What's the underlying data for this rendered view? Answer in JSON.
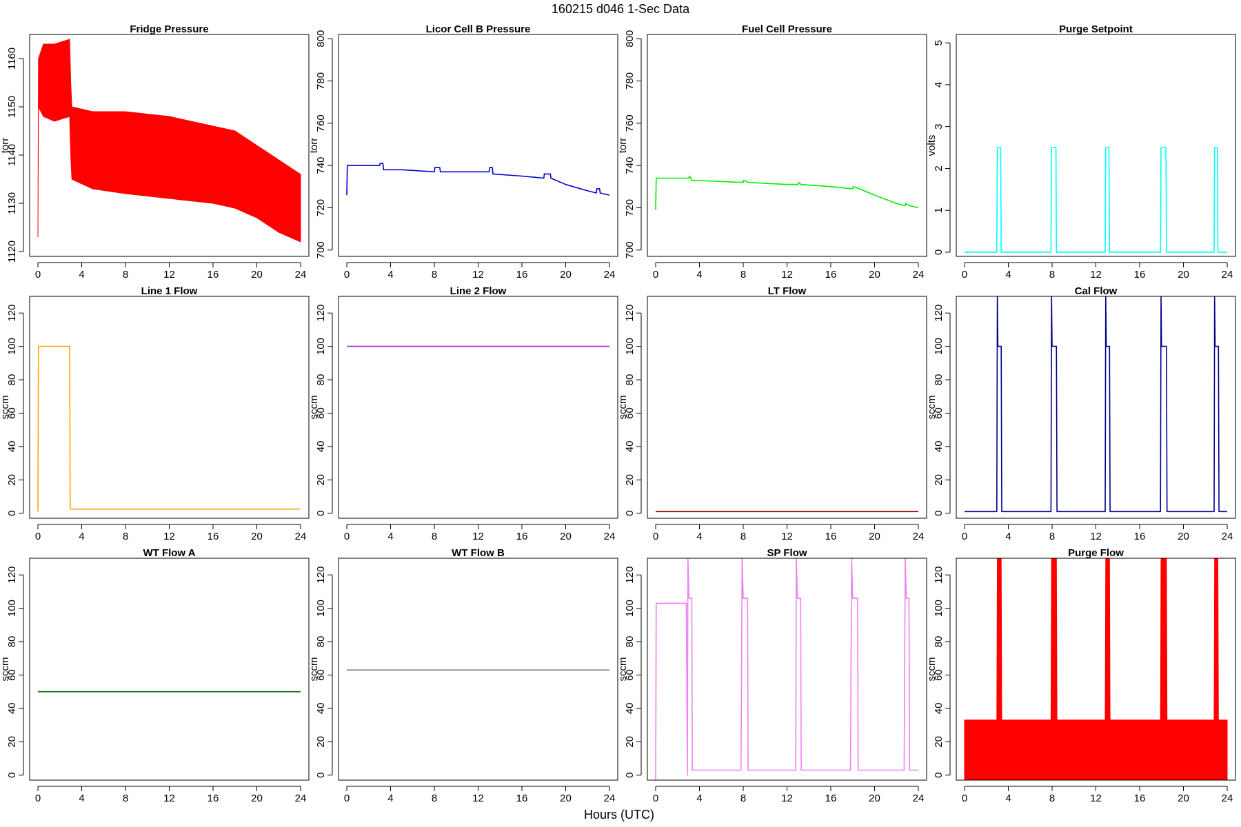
{
  "figure": {
    "title": "160215    d046    1-Sec Data",
    "shared_xlabel": "Hours (UTC)"
  },
  "chart_data": [
    {
      "type": "line",
      "title": "Fridge Pressure",
      "ylabel": "torr",
      "color": "#ff0000",
      "xlim": [
        0,
        24
      ],
      "ylim": [
        1119,
        1165
      ],
      "xticks": [
        0,
        4,
        8,
        12,
        16,
        20,
        24
      ],
      "yticks": [
        1120,
        1130,
        1140,
        1150,
        1160
      ],
      "series": [
        {
          "mode": "band",
          "upper": [
            [
              0,
              1123
            ],
            [
              0.05,
              1160
            ],
            [
              0.5,
              1163
            ],
            [
              1.5,
              1163
            ],
            [
              2.9,
              1164
            ],
            [
              3,
              1155
            ],
            [
              3.1,
              1150
            ],
            [
              5,
              1149
            ],
            [
              8,
              1149
            ],
            [
              12,
              1148
            ],
            [
              16,
              1146
            ],
            [
              18,
              1145
            ],
            [
              20,
              1142
            ],
            [
              22,
              1139
            ],
            [
              24,
              1136
            ]
          ],
          "lower": [
            [
              0,
              1123
            ],
            [
              0.05,
              1150
            ],
            [
              0.5,
              1148
            ],
            [
              1.5,
              1147
            ],
            [
              2.9,
              1148
            ],
            [
              3,
              1140
            ],
            [
              3.1,
              1135
            ],
            [
              5,
              1133
            ],
            [
              8,
              1132
            ],
            [
              12,
              1131
            ],
            [
              16,
              1130
            ],
            [
              18,
              1129
            ],
            [
              20,
              1127
            ],
            [
              22,
              1124
            ],
            [
              24,
              1122
            ]
          ]
        }
      ]
    },
    {
      "type": "line",
      "title": "Licor Cell B Pressure",
      "ylabel": "torr",
      "color": "#0000cc",
      "xlim": [
        0,
        24
      ],
      "ylim": [
        697,
        802
      ],
      "xticks": [
        0,
        4,
        8,
        12,
        16,
        20,
        24
      ],
      "yticks": [
        700,
        720,
        740,
        760,
        780,
        800
      ],
      "series": [
        {
          "mode": "line",
          "points": [
            [
              0,
              726
            ],
            [
              0.05,
              740
            ],
            [
              3,
              740
            ],
            [
              3.05,
              741
            ],
            [
              3.3,
              741
            ],
            [
              3.35,
              738
            ],
            [
              5,
              738
            ],
            [
              8,
              737
            ],
            [
              8.05,
              739
            ],
            [
              8.5,
              739
            ],
            [
              8.55,
              737
            ],
            [
              12,
              737
            ],
            [
              13,
              737
            ],
            [
              13.05,
              739
            ],
            [
              13.3,
              739
            ],
            [
              13.35,
              736
            ],
            [
              16,
              735
            ],
            [
              18,
              734
            ],
            [
              18.05,
              736
            ],
            [
              18.6,
              736
            ],
            [
              18.65,
              734
            ],
            [
              20,
              731
            ],
            [
              22,
              728
            ],
            [
              22.8,
              727
            ],
            [
              22.85,
              729
            ],
            [
              23.1,
              729
            ],
            [
              23.15,
              727
            ],
            [
              24,
              726
            ]
          ]
        }
      ]
    },
    {
      "type": "line",
      "title": "Fuel Cell Pressure",
      "ylabel": "torr",
      "color": "#00ee00",
      "xlim": [
        0,
        24
      ],
      "ylim": [
        697,
        802
      ],
      "xticks": [
        0,
        4,
        8,
        12,
        16,
        20,
        24
      ],
      "yticks": [
        700,
        720,
        740,
        760,
        780,
        800
      ],
      "series": [
        {
          "mode": "line",
          "points": [
            [
              0,
              719
            ],
            [
              0.05,
              734
            ],
            [
              3,
              734
            ],
            [
              3.1,
              735
            ],
            [
              3.3,
              733
            ],
            [
              8,
              732
            ],
            [
              8.05,
              733
            ],
            [
              8.5,
              732
            ],
            [
              12,
              731
            ],
            [
              13,
              731
            ],
            [
              13.05,
              732
            ],
            [
              13.3,
              731
            ],
            [
              16,
              730
            ],
            [
              18,
              729
            ],
            [
              18.05,
              730
            ],
            [
              18.6,
              729
            ],
            [
              20,
              726
            ],
            [
              22,
              722
            ],
            [
              22.8,
              721
            ],
            [
              22.85,
              722
            ],
            [
              23.2,
              721
            ],
            [
              24,
              720
            ]
          ]
        }
      ]
    },
    {
      "type": "line",
      "title": "Purge Setpoint",
      "ylabel": "volts",
      "color": "#00ffff",
      "xlim": [
        0,
        24
      ],
      "ylim": [
        -0.1,
        5.2
      ],
      "xticks": [
        0,
        4,
        8,
        12,
        16,
        20,
        24
      ],
      "yticks": [
        0,
        1,
        2,
        3,
        4,
        5
      ],
      "series": [
        {
          "mode": "line",
          "points": [
            [
              0,
              0
            ],
            [
              2.95,
              0
            ],
            [
              3,
              2.5
            ],
            [
              3.3,
              2.5
            ],
            [
              3.35,
              0
            ],
            [
              7.9,
              0
            ],
            [
              7.95,
              2.5
            ],
            [
              8.35,
              2.5
            ],
            [
              8.4,
              0
            ],
            [
              12.85,
              0
            ],
            [
              12.9,
              2.5
            ],
            [
              13.2,
              2.5
            ],
            [
              13.25,
              0
            ],
            [
              17.9,
              0
            ],
            [
              17.95,
              2.5
            ],
            [
              18.4,
              2.5
            ],
            [
              18.45,
              0
            ],
            [
              22.8,
              0
            ],
            [
              22.85,
              2.5
            ],
            [
              23.1,
              2.5
            ],
            [
              23.15,
              0
            ],
            [
              24,
              0
            ]
          ]
        }
      ]
    },
    {
      "type": "line",
      "title": "Line 1 Flow",
      "ylabel": "sccm",
      "color": "#ffa500",
      "xlim": [
        0,
        24
      ],
      "ylim": [
        -3,
        130
      ],
      "xticks": [
        0,
        4,
        8,
        12,
        16,
        20,
        24
      ],
      "yticks": [
        0,
        20,
        40,
        60,
        80,
        100,
        120
      ],
      "series": [
        {
          "mode": "line",
          "points": [
            [
              0,
              1
            ],
            [
              0.05,
              100
            ],
            [
              2.9,
              100
            ],
            [
              2.95,
              2.5
            ],
            [
              24,
              2.5
            ]
          ]
        }
      ]
    },
    {
      "type": "line",
      "title": "Line 2 Flow",
      "ylabel": "sccm",
      "color": "#a020f0",
      "xlim": [
        0,
        24
      ],
      "ylim": [
        -3,
        130
      ],
      "xticks": [
        0,
        4,
        8,
        12,
        16,
        20,
        24
      ],
      "yticks": [
        0,
        20,
        40,
        60,
        80,
        100,
        120
      ],
      "series": [
        {
          "mode": "line",
          "points": [
            [
              0,
              100
            ],
            [
              24,
              100
            ]
          ]
        }
      ]
    },
    {
      "type": "line",
      "title": "LT Flow",
      "ylabel": "sccm",
      "color": "#8b0000",
      "xlim": [
        0,
        24
      ],
      "ylim": [
        -3,
        130
      ],
      "xticks": [
        0,
        4,
        8,
        12,
        16,
        20,
        24
      ],
      "yticks": [
        0,
        20,
        40,
        60,
        80,
        100,
        120
      ],
      "series": [
        {
          "mode": "line",
          "points": [
            [
              0,
              1
            ],
            [
              24,
              1
            ]
          ]
        }
      ]
    },
    {
      "type": "line",
      "title": "Cal Flow",
      "ylabel": "sccm",
      "color": "#00008b",
      "xlim": [
        0,
        24
      ],
      "ylim": [
        -3,
        130
      ],
      "xticks": [
        0,
        4,
        8,
        12,
        16,
        20,
        24
      ],
      "yticks": [
        0,
        20,
        40,
        60,
        80,
        100,
        120
      ],
      "series": [
        {
          "mode": "line",
          "points": [
            [
              0,
              1
            ],
            [
              2.95,
              1
            ],
            [
              3,
              130
            ],
            [
              3.05,
              100
            ],
            [
              3.35,
              100
            ],
            [
              3.4,
              1
            ],
            [
              7.9,
              1
            ],
            [
              7.95,
              130
            ],
            [
              8,
              100
            ],
            [
              8.4,
              100
            ],
            [
              8.45,
              1
            ],
            [
              12.85,
              1
            ],
            [
              12.9,
              130
            ],
            [
              12.95,
              100
            ],
            [
              13.25,
              100
            ],
            [
              13.3,
              1
            ],
            [
              17.9,
              1
            ],
            [
              17.95,
              130
            ],
            [
              18,
              100
            ],
            [
              18.45,
              100
            ],
            [
              18.5,
              1
            ],
            [
              22.8,
              1
            ],
            [
              22.85,
              130
            ],
            [
              22.9,
              100
            ],
            [
              23.2,
              100
            ],
            [
              23.25,
              1
            ],
            [
              24,
              1
            ]
          ]
        }
      ]
    },
    {
      "type": "line",
      "title": "WT Flow A",
      "ylabel": "sccm",
      "color": "#006400",
      "xlim": [
        0,
        24
      ],
      "ylim": [
        -3,
        130
      ],
      "xticks": [
        0,
        4,
        8,
        12,
        16,
        20,
        24
      ],
      "yticks": [
        0,
        20,
        40,
        60,
        80,
        100,
        120
      ],
      "series": [
        {
          "mode": "line",
          "points": [
            [
              0,
              50
            ],
            [
              24,
              50
            ]
          ]
        }
      ]
    },
    {
      "type": "line",
      "title": "WT Flow B",
      "ylabel": "sccm",
      "color": "#808080",
      "xlim": [
        0,
        24
      ],
      "ylim": [
        -3,
        130
      ],
      "xticks": [
        0,
        4,
        8,
        12,
        16,
        20,
        24
      ],
      "yticks": [
        0,
        20,
        40,
        60,
        80,
        100,
        120
      ],
      "series": [
        {
          "mode": "line",
          "points": [
            [
              0,
              63
            ],
            [
              24,
              63
            ]
          ]
        }
      ]
    },
    {
      "type": "line",
      "title": "SP Flow",
      "ylabel": "sccm",
      "color": "#ee82ee",
      "xlim": [
        0,
        24
      ],
      "ylim": [
        -3,
        130
      ],
      "xticks": [
        0,
        4,
        8,
        12,
        16,
        20,
        24
      ],
      "yticks": [
        0,
        20,
        40,
        60,
        80,
        100,
        120
      ],
      "series": [
        {
          "mode": "line",
          "points": [
            [
              0,
              -3
            ],
            [
              0.05,
              103
            ],
            [
              2.8,
              103
            ],
            [
              2.9,
              0
            ],
            [
              2.95,
              130
            ],
            [
              3.05,
              106
            ],
            [
              3.3,
              106
            ],
            [
              3.35,
              3
            ],
            [
              7.8,
              3
            ],
            [
              7.9,
              130
            ],
            [
              8,
              106
            ],
            [
              8.4,
              106
            ],
            [
              8.45,
              3
            ],
            [
              12.8,
              3
            ],
            [
              12.85,
              130
            ],
            [
              12.95,
              106
            ],
            [
              13.25,
              106
            ],
            [
              13.3,
              3
            ],
            [
              17.8,
              3
            ],
            [
              17.9,
              130
            ],
            [
              18,
              106
            ],
            [
              18.45,
              106
            ],
            [
              18.5,
              3
            ],
            [
              22.7,
              3
            ],
            [
              22.8,
              130
            ],
            [
              22.9,
              106
            ],
            [
              23.15,
              106
            ],
            [
              23.2,
              3
            ],
            [
              24,
              3
            ]
          ]
        }
      ]
    },
    {
      "type": "line",
      "title": "Purge Flow",
      "ylabel": "sccm",
      "color": "#ff0000",
      "xlim": [
        0,
        24
      ],
      "ylim": [
        -3,
        130
      ],
      "xticks": [
        0,
        4,
        8,
        12,
        16,
        20,
        24
      ],
      "yticks": [
        0,
        20,
        40,
        60,
        80,
        100,
        120
      ],
      "series": [
        {
          "mode": "band",
          "upper": [
            [
              0,
              33
            ],
            [
              2.95,
              33
            ],
            [
              3,
              130
            ],
            [
              3.35,
              130
            ],
            [
              3.4,
              33
            ],
            [
              7.9,
              33
            ],
            [
              7.95,
              130
            ],
            [
              8.4,
              130
            ],
            [
              8.45,
              33
            ],
            [
              12.85,
              33
            ],
            [
              12.9,
              130
            ],
            [
              13.25,
              130
            ],
            [
              13.3,
              33
            ],
            [
              17.9,
              33
            ],
            [
              17.95,
              130
            ],
            [
              18.45,
              130
            ],
            [
              18.5,
              33
            ],
            [
              22.8,
              33
            ],
            [
              22.85,
              130
            ],
            [
              23.15,
              130
            ],
            [
              23.2,
              33
            ],
            [
              24,
              33
            ]
          ],
          "lower": [
            [
              0,
              -3
            ],
            [
              24,
              -3
            ]
          ]
        }
      ]
    }
  ]
}
